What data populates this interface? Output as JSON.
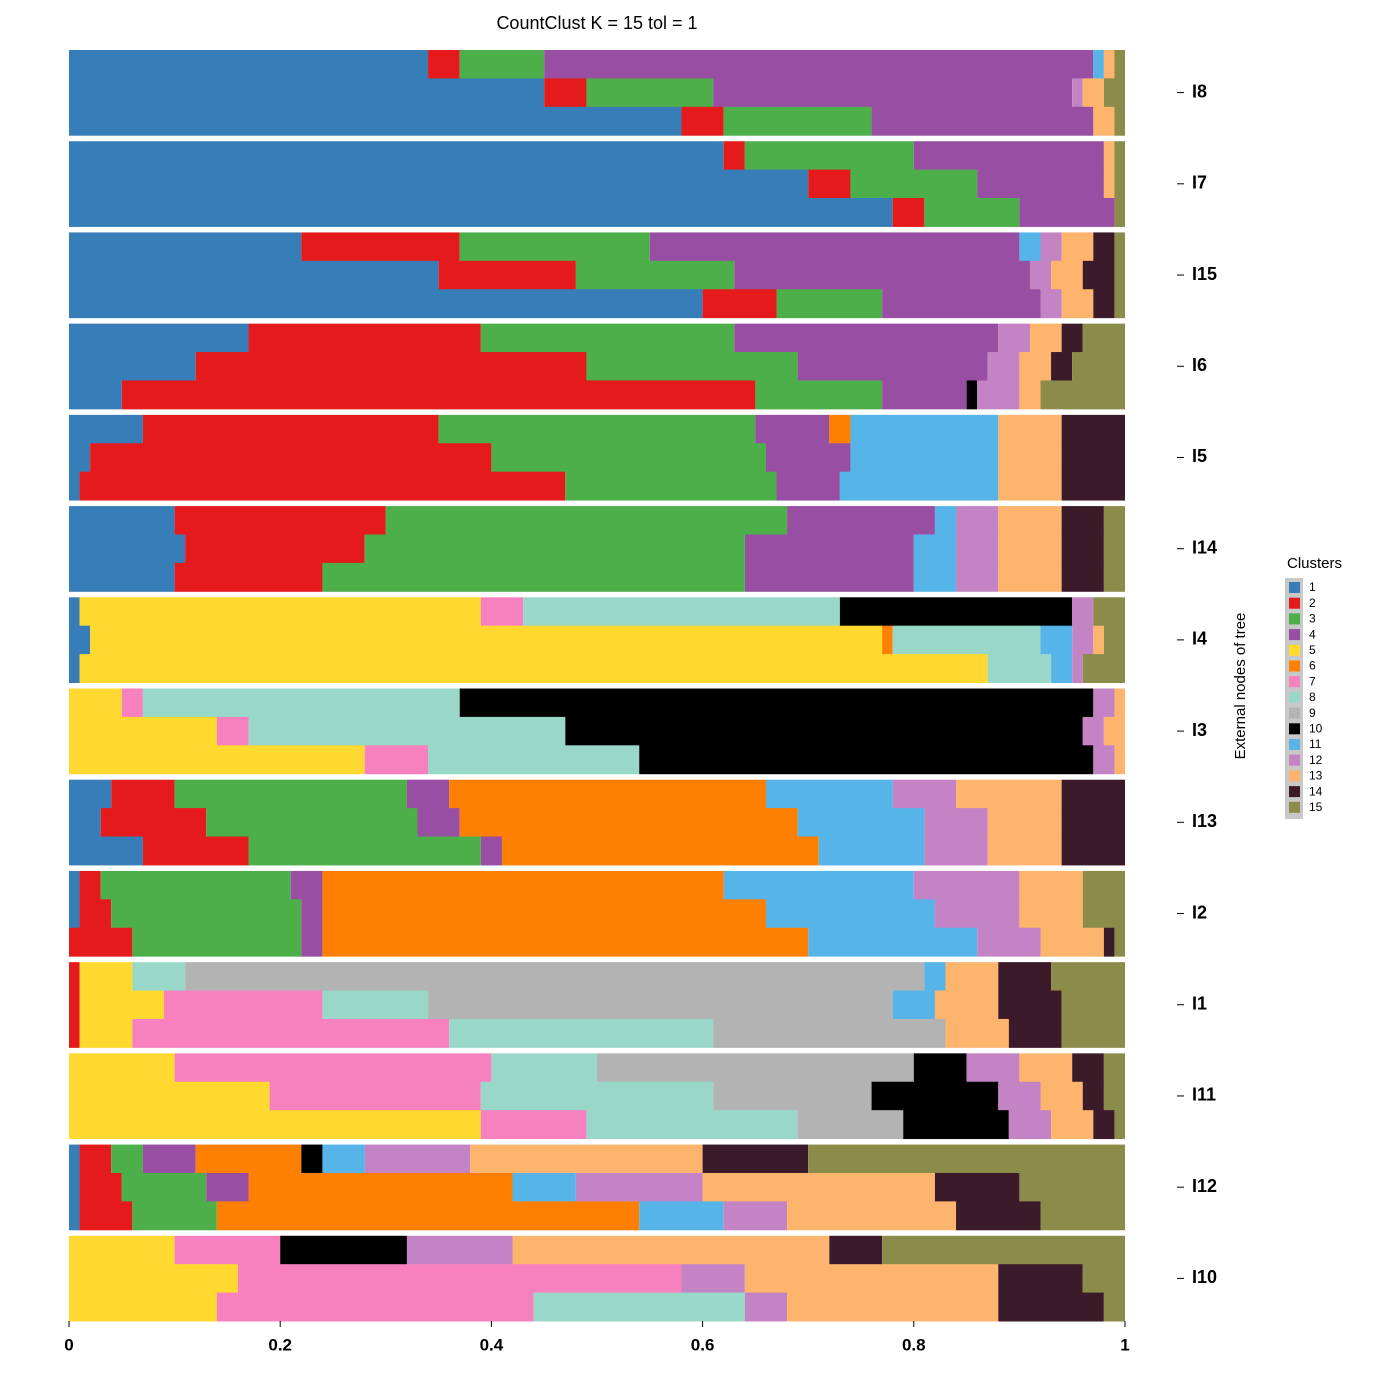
{
  "chart_data": {
    "type": "bar",
    "stacked": true,
    "orientation": "horizontal",
    "title": "CountClust K =  15 tol =  1",
    "ylabel": "External nodes of tree",
    "legend_title": "Clusters",
    "xlim": [
      0,
      1
    ],
    "xticks": [
      0,
      0.2,
      0.4,
      0.6,
      0.8,
      1
    ],
    "series": [
      {
        "name": "1",
        "color": "#377EB8"
      },
      {
        "name": "2",
        "color": "#E41A1C"
      },
      {
        "name": "3",
        "color": "#4DAF4A"
      },
      {
        "name": "4",
        "color": "#984EA3"
      },
      {
        "name": "5",
        "color": "#FFD92F"
      },
      {
        "name": "6",
        "color": "#FF7F00"
      },
      {
        "name": "7",
        "color": "#F781BF"
      },
      {
        "name": "8",
        "color": "#99D8C9"
      },
      {
        "name": "9",
        "color": "#B3B3B3"
      },
      {
        "name": "10",
        "color": "#000000"
      },
      {
        "name": "11",
        "color": "#56B4E9"
      },
      {
        "name": "12",
        "color": "#C483C4"
      },
      {
        "name": "13",
        "color": "#FDB46C"
      },
      {
        "name": "14",
        "color": "#3B1A2A"
      },
      {
        "name": "15",
        "color": "#8C8C4A"
      }
    ],
    "groups": [
      {
        "label": "I8",
        "rows": [
          [
            0.34,
            0.03,
            0.08,
            0.52,
            0,
            0,
            0,
            0,
            0,
            0,
            0.01,
            0,
            0.01,
            0,
            0.01
          ],
          [
            0.45,
            0.04,
            0.12,
            0.34,
            0,
            0,
            0,
            0,
            0,
            0,
            0,
            0.01,
            0.02,
            0,
            0.02
          ],
          [
            0.58,
            0.04,
            0.14,
            0.21,
            0,
            0,
            0,
            0,
            0,
            0,
            0,
            0,
            0.02,
            0,
            0.01
          ]
        ]
      },
      {
        "label": "I7",
        "rows": [
          [
            0.62,
            0.02,
            0.16,
            0.18,
            0,
            0,
            0,
            0,
            0,
            0,
            0,
            0,
            0.01,
            0,
            0.01
          ],
          [
            0.7,
            0.04,
            0.12,
            0.12,
            0,
            0,
            0,
            0,
            0,
            0,
            0,
            0,
            0.01,
            0,
            0.01
          ],
          [
            0.78,
            0.03,
            0.09,
            0.09,
            0,
            0,
            0,
            0,
            0,
            0,
            0,
            0,
            0,
            0,
            0.01
          ]
        ]
      },
      {
        "label": "I15",
        "rows": [
          [
            0.22,
            0.15,
            0.18,
            0.35,
            0,
            0,
            0,
            0,
            0,
            0,
            0.02,
            0.02,
            0.03,
            0.02,
            0.01
          ],
          [
            0.35,
            0.13,
            0.15,
            0.28,
            0,
            0,
            0,
            0,
            0,
            0,
            0,
            0.02,
            0.03,
            0.03,
            0.01
          ],
          [
            0.6,
            0.07,
            0.1,
            0.15,
            0,
            0,
            0,
            0,
            0,
            0,
            0,
            0.02,
            0.03,
            0.02,
            0.01
          ]
        ]
      },
      {
        "label": "I6",
        "rows": [
          [
            0.17,
            0.22,
            0.24,
            0.25,
            0,
            0,
            0,
            0,
            0,
            0,
            0,
            0.03,
            0.03,
            0.02,
            0.04
          ],
          [
            0.12,
            0.37,
            0.2,
            0.18,
            0,
            0,
            0,
            0,
            0,
            0,
            0,
            0.03,
            0.03,
            0.02,
            0.05
          ],
          [
            0.05,
            0.6,
            0.12,
            0.08,
            0,
            0,
            0,
            0,
            0,
            0.01,
            0,
            0.04,
            0.02,
            0,
            0.08
          ]
        ]
      },
      {
        "label": "I5",
        "rows": [
          [
            0.07,
            0.28,
            0.3,
            0.07,
            0,
            0.02,
            0,
            0,
            0,
            0,
            0.14,
            0,
            0.06,
            0.06,
            0
          ],
          [
            0.02,
            0.38,
            0.26,
            0.08,
            0,
            0,
            0,
            0,
            0,
            0,
            0.14,
            0,
            0.06,
            0.06,
            0
          ],
          [
            0.01,
            0.46,
            0.2,
            0.06,
            0,
            0,
            0,
            0,
            0,
            0,
            0.15,
            0,
            0.06,
            0.06,
            0
          ]
        ]
      },
      {
        "label": "I14",
        "rows": [
          [
            0.1,
            0.2,
            0.38,
            0.14,
            0,
            0,
            0,
            0,
            0,
            0,
            0.02,
            0.04,
            0.06,
            0.04,
            0.02
          ],
          [
            0.11,
            0.17,
            0.36,
            0.16,
            0,
            0,
            0,
            0,
            0,
            0,
            0.04,
            0.04,
            0.06,
            0.04,
            0.02
          ],
          [
            0.1,
            0.14,
            0.4,
            0.16,
            0,
            0,
            0,
            0,
            0,
            0,
            0.04,
            0.04,
            0.06,
            0.04,
            0.02
          ]
        ]
      },
      {
        "label": "I4",
        "rows": [
          [
            0.01,
            0,
            0,
            0,
            0.38,
            0,
            0.04,
            0.3,
            0,
            0.22,
            0,
            0.02,
            0,
            0,
            0.03
          ],
          [
            0.02,
            0,
            0,
            0,
            0.75,
            0.01,
            0,
            0.14,
            0,
            0,
            0.03,
            0.02,
            0.01,
            0,
            0.02
          ],
          [
            0.01,
            0,
            0,
            0,
            0.86,
            0,
            0,
            0.06,
            0,
            0,
            0.02,
            0.01,
            0,
            0,
            0.04
          ]
        ]
      },
      {
        "label": "I3",
        "rows": [
          [
            0,
            0,
            0,
            0,
            0.05,
            0,
            0.02,
            0.3,
            0,
            0.6,
            0,
            0.02,
            0.01,
            0,
            0
          ],
          [
            0,
            0,
            0,
            0,
            0.14,
            0,
            0.03,
            0.3,
            0,
            0.49,
            0,
            0.02,
            0.02,
            0,
            0
          ],
          [
            0,
            0,
            0,
            0,
            0.28,
            0,
            0.06,
            0.2,
            0,
            0.43,
            0,
            0.02,
            0.01,
            0,
            0
          ]
        ]
      },
      {
        "label": "I13",
        "rows": [
          [
            0.04,
            0.06,
            0.22,
            0.04,
            0,
            0.3,
            0,
            0,
            0,
            0,
            0.12,
            0.06,
            0.1,
            0.06,
            0
          ],
          [
            0.03,
            0.1,
            0.2,
            0.04,
            0,
            0.32,
            0,
            0,
            0,
            0,
            0.12,
            0.06,
            0.07,
            0.06,
            0
          ],
          [
            0.07,
            0.1,
            0.22,
            0.02,
            0,
            0.3,
            0,
            0,
            0,
            0,
            0.1,
            0.06,
            0.07,
            0.06,
            0
          ]
        ]
      },
      {
        "label": "I2",
        "rows": [
          [
            0.01,
            0.02,
            0.18,
            0.03,
            0,
            0.38,
            0,
            0,
            0,
            0,
            0.18,
            0.1,
            0.06,
            0,
            0.04
          ],
          [
            0.01,
            0.03,
            0.18,
            0.02,
            0,
            0.42,
            0,
            0,
            0,
            0,
            0.16,
            0.08,
            0.06,
            0,
            0.04
          ],
          [
            0,
            0.06,
            0.16,
            0.02,
            0,
            0.46,
            0,
            0,
            0,
            0,
            0.16,
            0.06,
            0.06,
            0.01,
            0.01
          ]
        ]
      },
      {
        "label": "I1",
        "rows": [
          [
            0,
            0.01,
            0,
            0,
            0.05,
            0,
            0,
            0.05,
            0.7,
            0,
            0.02,
            0,
            0.05,
            0.05,
            0.07
          ],
          [
            0,
            0.01,
            0,
            0,
            0.08,
            0,
            0.15,
            0.1,
            0.44,
            0,
            0.04,
            0,
            0.06,
            0.06,
            0.06
          ],
          [
            0,
            0.01,
            0,
            0,
            0.05,
            0,
            0.3,
            0.25,
            0.22,
            0,
            0,
            0,
            0.06,
            0.05,
            0.06
          ]
        ]
      },
      {
        "label": "I11",
        "rows": [
          [
            0,
            0,
            0,
            0,
            0.1,
            0,
            0.3,
            0.1,
            0.3,
            0.05,
            0,
            0.05,
            0.05,
            0.03,
            0.02
          ],
          [
            0,
            0,
            0,
            0,
            0.19,
            0,
            0.2,
            0.22,
            0.15,
            0.12,
            0,
            0.04,
            0.04,
            0.02,
            0.02
          ],
          [
            0,
            0,
            0,
            0,
            0.39,
            0,
            0.1,
            0.2,
            0.1,
            0.1,
            0,
            0.04,
            0.04,
            0.02,
            0.01
          ]
        ]
      },
      {
        "label": "I12",
        "rows": [
          [
            0.01,
            0.03,
            0.03,
            0.05,
            0,
            0.1,
            0,
            0,
            0,
            0.02,
            0.04,
            0.1,
            0.22,
            0.1,
            0.3
          ],
          [
            0.01,
            0.04,
            0.08,
            0.04,
            0,
            0.25,
            0,
            0,
            0,
            0,
            0.06,
            0.12,
            0.22,
            0.08,
            0.1
          ],
          [
            0.01,
            0.05,
            0.08,
            0,
            0,
            0.4,
            0,
            0,
            0,
            0,
            0.08,
            0.06,
            0.16,
            0.08,
            0.08
          ]
        ]
      },
      {
        "label": "I10",
        "rows": [
          [
            0,
            0,
            0,
            0,
            0.1,
            0,
            0.1,
            0,
            0,
            0.12,
            0,
            0.1,
            0.3,
            0.05,
            0.23
          ],
          [
            0,
            0,
            0,
            0,
            0.16,
            0,
            0.42,
            0,
            0,
            0,
            0,
            0.06,
            0.24,
            0.08,
            0.04
          ],
          [
            0,
            0,
            0,
            0,
            0.14,
            0,
            0.3,
            0.2,
            0,
            0,
            0,
            0.04,
            0.2,
            0.1,
            0.02
          ]
        ]
      }
    ]
  }
}
